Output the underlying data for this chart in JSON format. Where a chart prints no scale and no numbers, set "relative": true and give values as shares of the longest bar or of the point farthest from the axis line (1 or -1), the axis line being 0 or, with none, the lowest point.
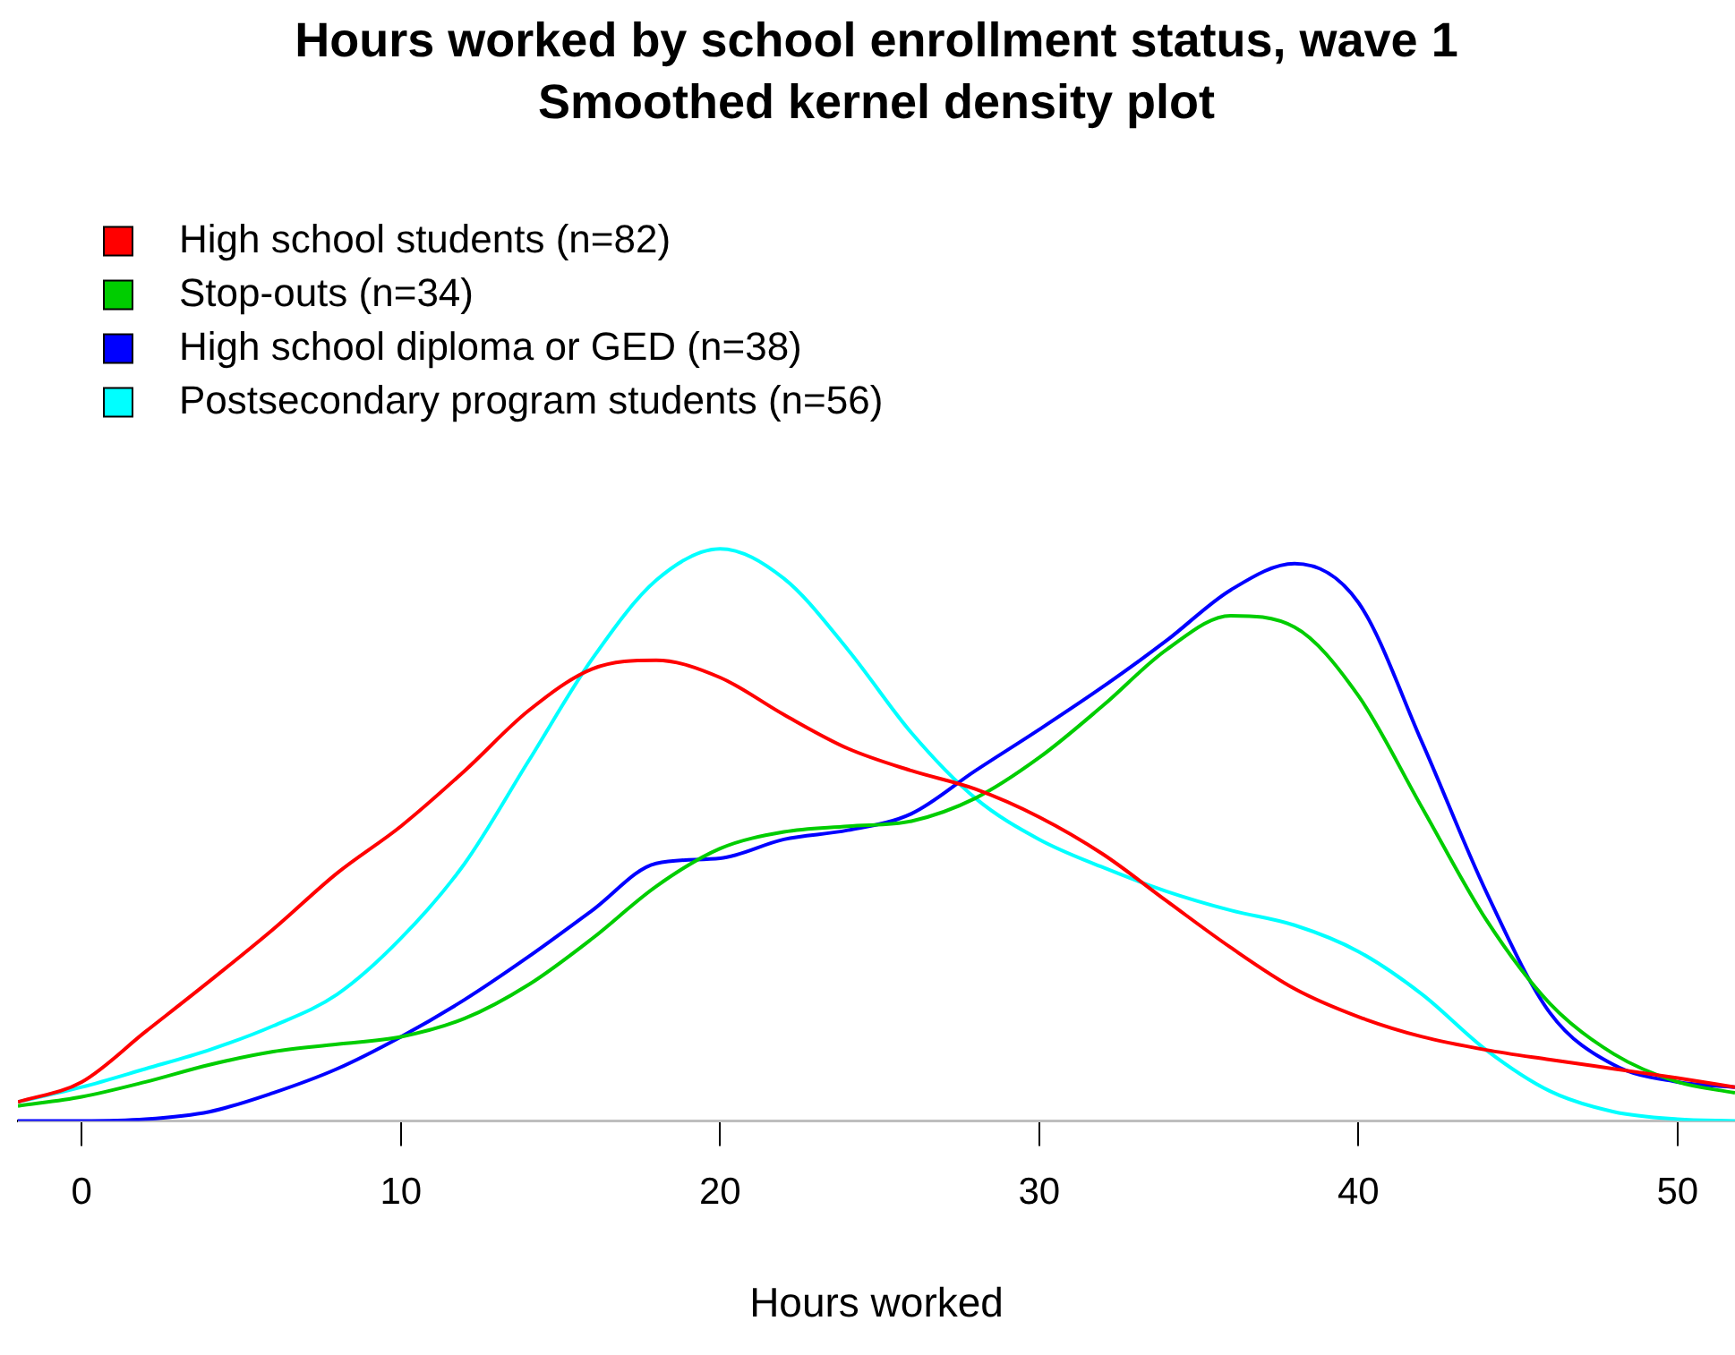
{
  "chart_data": {
    "type": "line",
    "title": "Hours worked by school enrollment status, wave 1",
    "subtitle": "Smoothed kernel density plot",
    "xlabel": "Hours worked",
    "x": [
      -2,
      0,
      2,
      4,
      6,
      8,
      10,
      12,
      14,
      16,
      18,
      20,
      22,
      24,
      26,
      28,
      30,
      32,
      34,
      36,
      38,
      40,
      42,
      44,
      46,
      48,
      50,
      51.8
    ],
    "series": [
      {
        "name": "High school students (n=82)",
        "color": "#ff0000",
        "values": [
          0.033,
          0.068,
          0.156,
          0.244,
          0.335,
          0.433,
          0.515,
          0.612,
          0.717,
          0.79,
          0.805,
          0.775,
          0.71,
          0.651,
          0.612,
          0.58,
          0.531,
          0.466,
          0.384,
          0.303,
          0.231,
          0.182,
          0.147,
          0.124,
          0.107,
          0.091,
          0.075,
          0.059
        ]
      },
      {
        "name": "Stop-outs (n=34)",
        "color": "#00cd00",
        "values": [
          0.026,
          0.042,
          0.068,
          0.098,
          0.121,
          0.134,
          0.147,
          0.179,
          0.238,
          0.319,
          0.41,
          0.476,
          0.505,
          0.515,
          0.524,
          0.564,
          0.635,
          0.726,
          0.824,
          0.883,
          0.863,
          0.743,
          0.547,
          0.352,
          0.205,
          0.117,
          0.068,
          0.049
        ]
      },
      {
        "name": "High school diploma or GED (n=38)",
        "color": "#0000ff",
        "values": [
          0,
          0,
          0.003,
          0.016,
          0.049,
          0.091,
          0.147,
          0.212,
          0.287,
          0.368,
          0.45,
          0.459,
          0.492,
          0.508,
          0.537,
          0.612,
          0.684,
          0.759,
          0.84,
          0.928,
          0.974,
          0.906,
          0.661,
          0.401,
          0.189,
          0.098,
          0.068,
          0.059
        ]
      },
      {
        "name": "Postsecondary program students (n=56)",
        "color": "#00ffff",
        "values": [
          0.033,
          0.059,
          0.091,
          0.124,
          0.166,
          0.221,
          0.319,
          0.45,
          0.629,
          0.808,
          0.945,
          1,
          0.948,
          0.824,
          0.678,
          0.564,
          0.492,
          0.443,
          0.401,
          0.368,
          0.342,
          0.296,
          0.221,
          0.124,
          0.052,
          0.016,
          0.003,
          0
        ]
      }
    ],
    "relative": true,
    "xlim": [
      -2,
      51.8
    ],
    "xticks": [
      0,
      10,
      20,
      30,
      40,
      50
    ],
    "grid": false,
    "legend": "top left",
    "marker": "none",
    "line_style": "solid"
  }
}
